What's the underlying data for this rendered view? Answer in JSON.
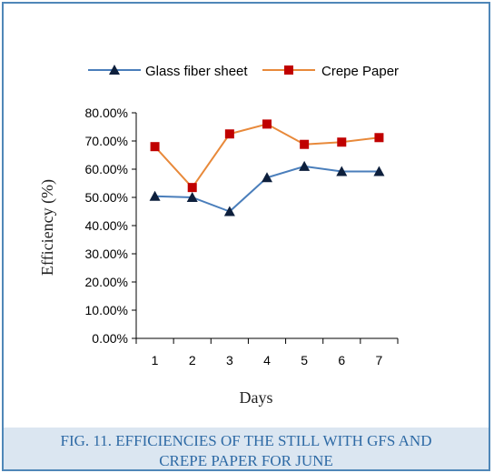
{
  "chart_data": {
    "type": "line",
    "title": "",
    "xlabel": "Days",
    "ylabel": "Efficiency (%)",
    "ylim": [
      0,
      0.8
    ],
    "y_ticks": [
      "0.00%",
      "10.00%",
      "20.00%",
      "30.00%",
      "40.00%",
      "50.00%",
      "60.00%",
      "70.00%",
      "80.00%"
    ],
    "categories": [
      "1",
      "2",
      "3",
      "4",
      "5",
      "6",
      "7"
    ],
    "legend_position": "top",
    "grid": false,
    "series": [
      {
        "name": "Glass fiber sheet",
        "values": [
          0.504,
          0.5,
          0.45,
          0.57,
          0.61,
          0.592,
          0.592
        ],
        "color": "#4a7ebb",
        "marker": "triangle",
        "marker_color": "#0d1f3c"
      },
      {
        "name": "Crepe Paper",
        "values": [
          0.68,
          0.535,
          0.725,
          0.76,
          0.688,
          0.696,
          0.712
        ],
        "color": "#e8893a",
        "marker": "square",
        "marker_color": "#c00000"
      }
    ]
  },
  "caption": {
    "line1": "FIG. 11. EFFICIENCIES OF THE STILL WITH GFS AND",
    "line2": "CREPE PAPER FOR JUNE"
  }
}
